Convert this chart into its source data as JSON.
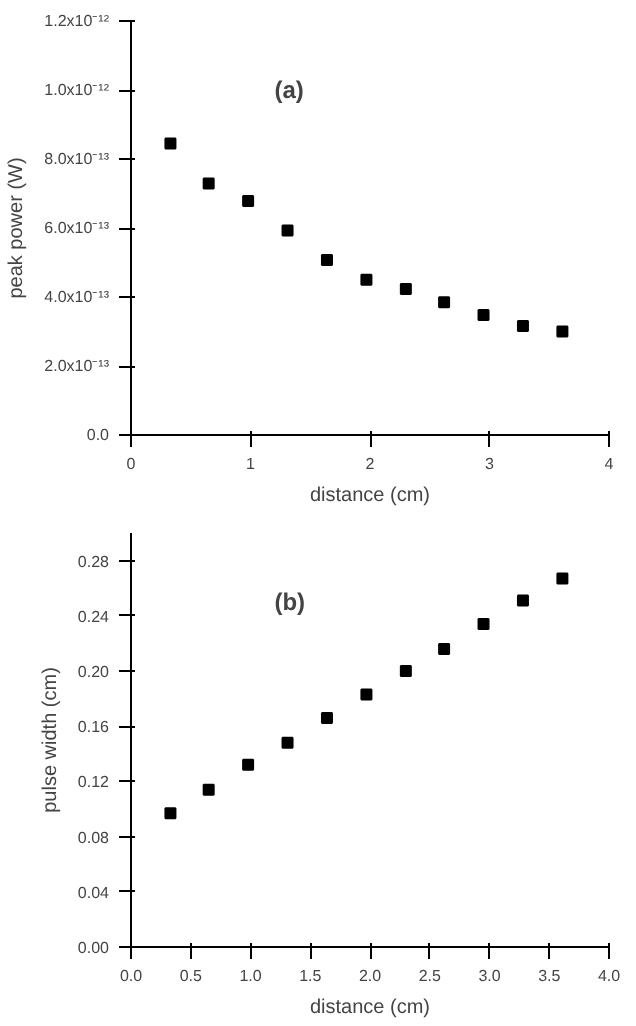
{
  "chart_data": [
    {
      "type": "scatter",
      "xlabel": "distance (cm)",
      "ylabel": "peak power (W)",
      "annotations": [
        "(a)"
      ],
      "marker": "square",
      "grid": false,
      "x": [
        0.33,
        0.65,
        0.98,
        1.31,
        1.64,
        1.97,
        2.3,
        2.62,
        2.95,
        3.28,
        3.61
      ],
      "series": [
        {
          "color": "#000000",
          "values": [
            8.45e-13,
            7.29e-13,
            6.78e-13,
            5.93e-13,
            5.07e-13,
            4.5e-13,
            4.23e-13,
            3.85e-13,
            3.48e-13,
            3.16e-13,
            3e-13
          ]
        }
      ],
      "xlim": [
        0,
        4
      ],
      "xticks": [
        0,
        1,
        2,
        3,
        4
      ],
      "ylim": [
        0,
        1.2e-12
      ],
      "yticks": [
        {
          "value": 0,
          "label": "0.0"
        },
        {
          "value": 2e-13,
          "label": "2.0x10⁻¹³"
        },
        {
          "value": 4e-13,
          "label": "4.0x10⁻¹³"
        },
        {
          "value": 6e-13,
          "label": "6.0x10⁻¹³"
        },
        {
          "value": 8e-13,
          "label": "8.0x10⁻¹³"
        },
        {
          "value": 1e-12,
          "label": "1.0x10⁻¹²"
        },
        {
          "value": 1.2e-12,
          "label": "1.2x10⁻¹²"
        }
      ]
    },
    {
      "type": "scatter",
      "xlabel": "distance (cm)",
      "ylabel": "pulse width (cm)",
      "annotations": [
        "(b)"
      ],
      "marker": "square",
      "grid": false,
      "x": [
        0.33,
        0.65,
        0.98,
        1.31,
        1.64,
        1.97,
        2.3,
        2.62,
        2.95,
        3.28,
        3.61
      ],
      "series": [
        {
          "color": "#000000",
          "values": [
            0.097,
            0.114,
            0.132,
            0.148,
            0.166,
            0.183,
            0.2,
            0.216,
            0.234,
            0.251,
            0.267
          ]
        }
      ],
      "xlim": [
        0,
        4
      ],
      "xticks": [
        {
          "value": 0,
          "label": "0.0"
        },
        {
          "value": 0.5,
          "label": "0.5"
        },
        {
          "value": 1,
          "label": "1.0"
        },
        {
          "value": 1.5,
          "label": "1.5"
        },
        {
          "value": 2,
          "label": "2.0"
        },
        {
          "value": 2.5,
          "label": "2.5"
        },
        {
          "value": 3,
          "label": "3.0"
        },
        {
          "value": 3.5,
          "label": "3.5"
        },
        {
          "value": 4,
          "label": "4.0"
        }
      ],
      "ylim": [
        0,
        0.3
      ],
      "yticks": [
        {
          "value": 0,
          "label": "0.00"
        },
        {
          "value": 0.04,
          "label": "0.04"
        },
        {
          "value": 0.08,
          "label": "0.08"
        },
        {
          "value": 0.12,
          "label": "0.12"
        },
        {
          "value": 0.16,
          "label": "0.16"
        },
        {
          "value": 0.2,
          "label": "0.20"
        },
        {
          "value": 0.24,
          "label": "0.24"
        },
        {
          "value": 0.28,
          "label": "0.28"
        }
      ]
    }
  ]
}
